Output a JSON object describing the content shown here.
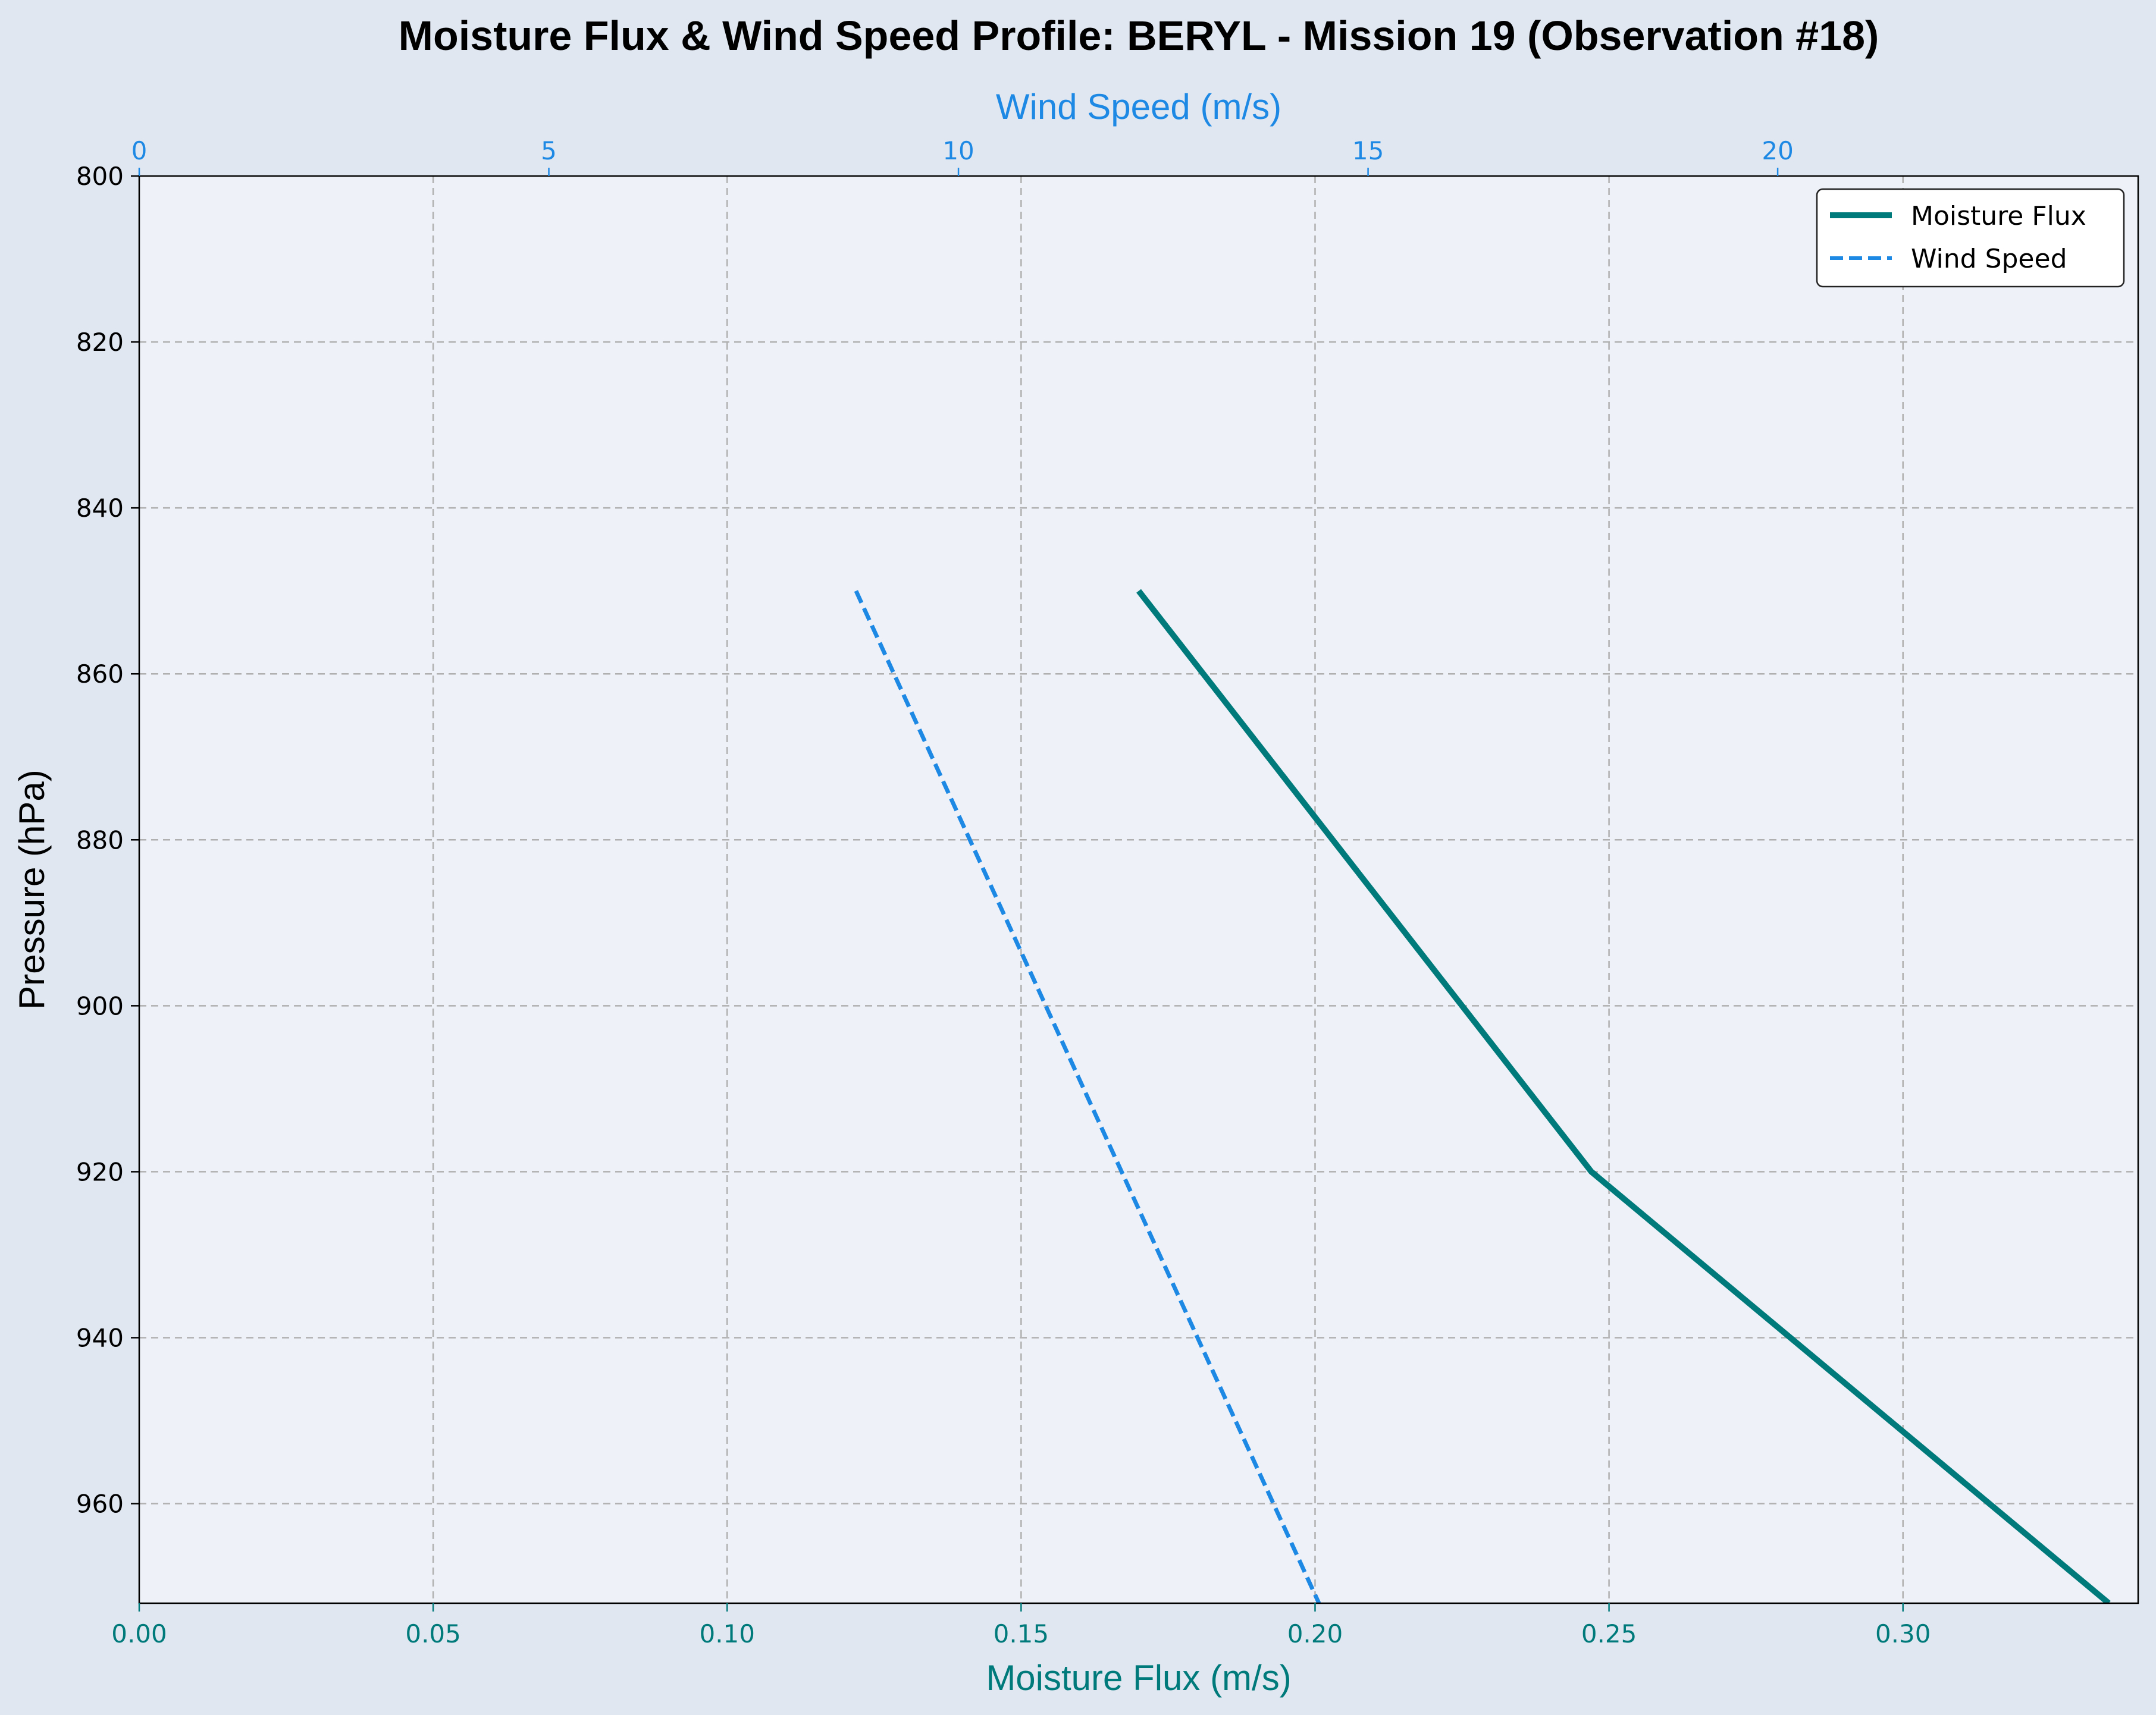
{
  "chart_data": {
    "type": "line",
    "title": "Moisture Flux & Wind Speed Profile: BERYL - Mission 19 (Observation #18)",
    "xlabel": "Moisture Flux (m/s)",
    "x2label": "Wind Speed (m/s)",
    "ylabel": "Pressure (hPa)",
    "xlim": [
      0,
      0.34
    ],
    "x2lim": [
      0,
      24.4
    ],
    "ylim": [
      972,
      800
    ],
    "y_inverted": true,
    "x_ticks": [
      "0.00",
      "0.05",
      "0.10",
      "0.15",
      "0.20",
      "0.25",
      "0.30"
    ],
    "x2_ticks": [
      "0",
      "5",
      "10",
      "15",
      "20"
    ],
    "y_ticks": [
      "800",
      "820",
      "840",
      "860",
      "880",
      "900",
      "920",
      "940",
      "960"
    ],
    "grid": true,
    "legend_position": "top-right",
    "colors": {
      "moisture": "#007a7a",
      "wind": "#1e88e5",
      "grid": "#b0b0b0",
      "plot_bg": "#eef2f8",
      "figure_bg": "#e0e7f1"
    },
    "series": [
      {
        "name": "Moisture Flux",
        "axis": "bottom",
        "style": "solid",
        "points": [
          [
            0.17,
            850
          ],
          [
            0.247,
            920
          ],
          [
            0.335,
            972
          ]
        ]
      },
      {
        "name": "Wind Speed",
        "axis": "top",
        "style": "dashed",
        "points": [
          [
            8.75,
            850
          ],
          [
            14.4,
            972
          ]
        ]
      }
    ]
  }
}
